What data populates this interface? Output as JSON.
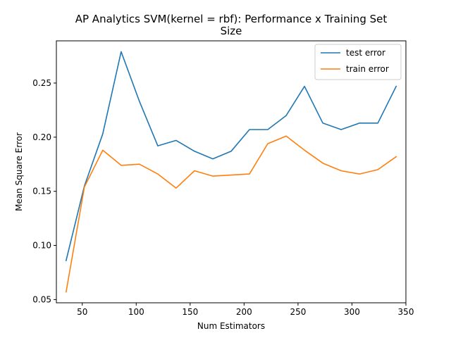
{
  "chart_data": {
    "type": "line",
    "title_line1": "AP Analytics SVM(kernel = rbf): Performance x Training Set",
    "title_line2": "Size",
    "xlabel": "Num Estimators",
    "ylabel": "Mean Square Error",
    "xlim": [
      26,
      350
    ],
    "ylim": [
      0.047,
      0.289
    ],
    "xticks": [
      50,
      100,
      150,
      200,
      250,
      300,
      350
    ],
    "yticks": [
      0.05,
      0.1,
      0.15,
      0.2,
      0.25
    ],
    "ytick_labels": [
      "0.05",
      "0.10",
      "0.15",
      "0.20",
      "0.25"
    ],
    "grid": false,
    "legend_position": "top-right",
    "x": [
      35,
      52,
      69,
      86,
      103,
      120,
      137,
      154,
      171,
      188,
      205,
      222,
      239,
      256,
      273,
      290,
      307,
      324,
      341
    ],
    "series": [
      {
        "name": "test error",
        "color": "#1f77b4",
        "values": [
          0.086,
          0.155,
          0.203,
          0.279,
          0.233,
          0.192,
          0.197,
          0.187,
          0.18,
          0.187,
          0.207,
          0.207,
          0.22,
          0.247,
          0.213,
          0.207,
          0.213,
          0.213,
          0.247
        ]
      },
      {
        "name": "train error",
        "color": "#ff7f0e",
        "values": [
          0.057,
          0.154,
          0.188,
          0.174,
          0.175,
          0.166,
          0.153,
          0.169,
          0.164,
          0.165,
          0.166,
          0.194,
          0.201,
          0.188,
          0.176,
          0.169,
          0.166,
          0.17,
          0.182
        ]
      }
    ]
  }
}
